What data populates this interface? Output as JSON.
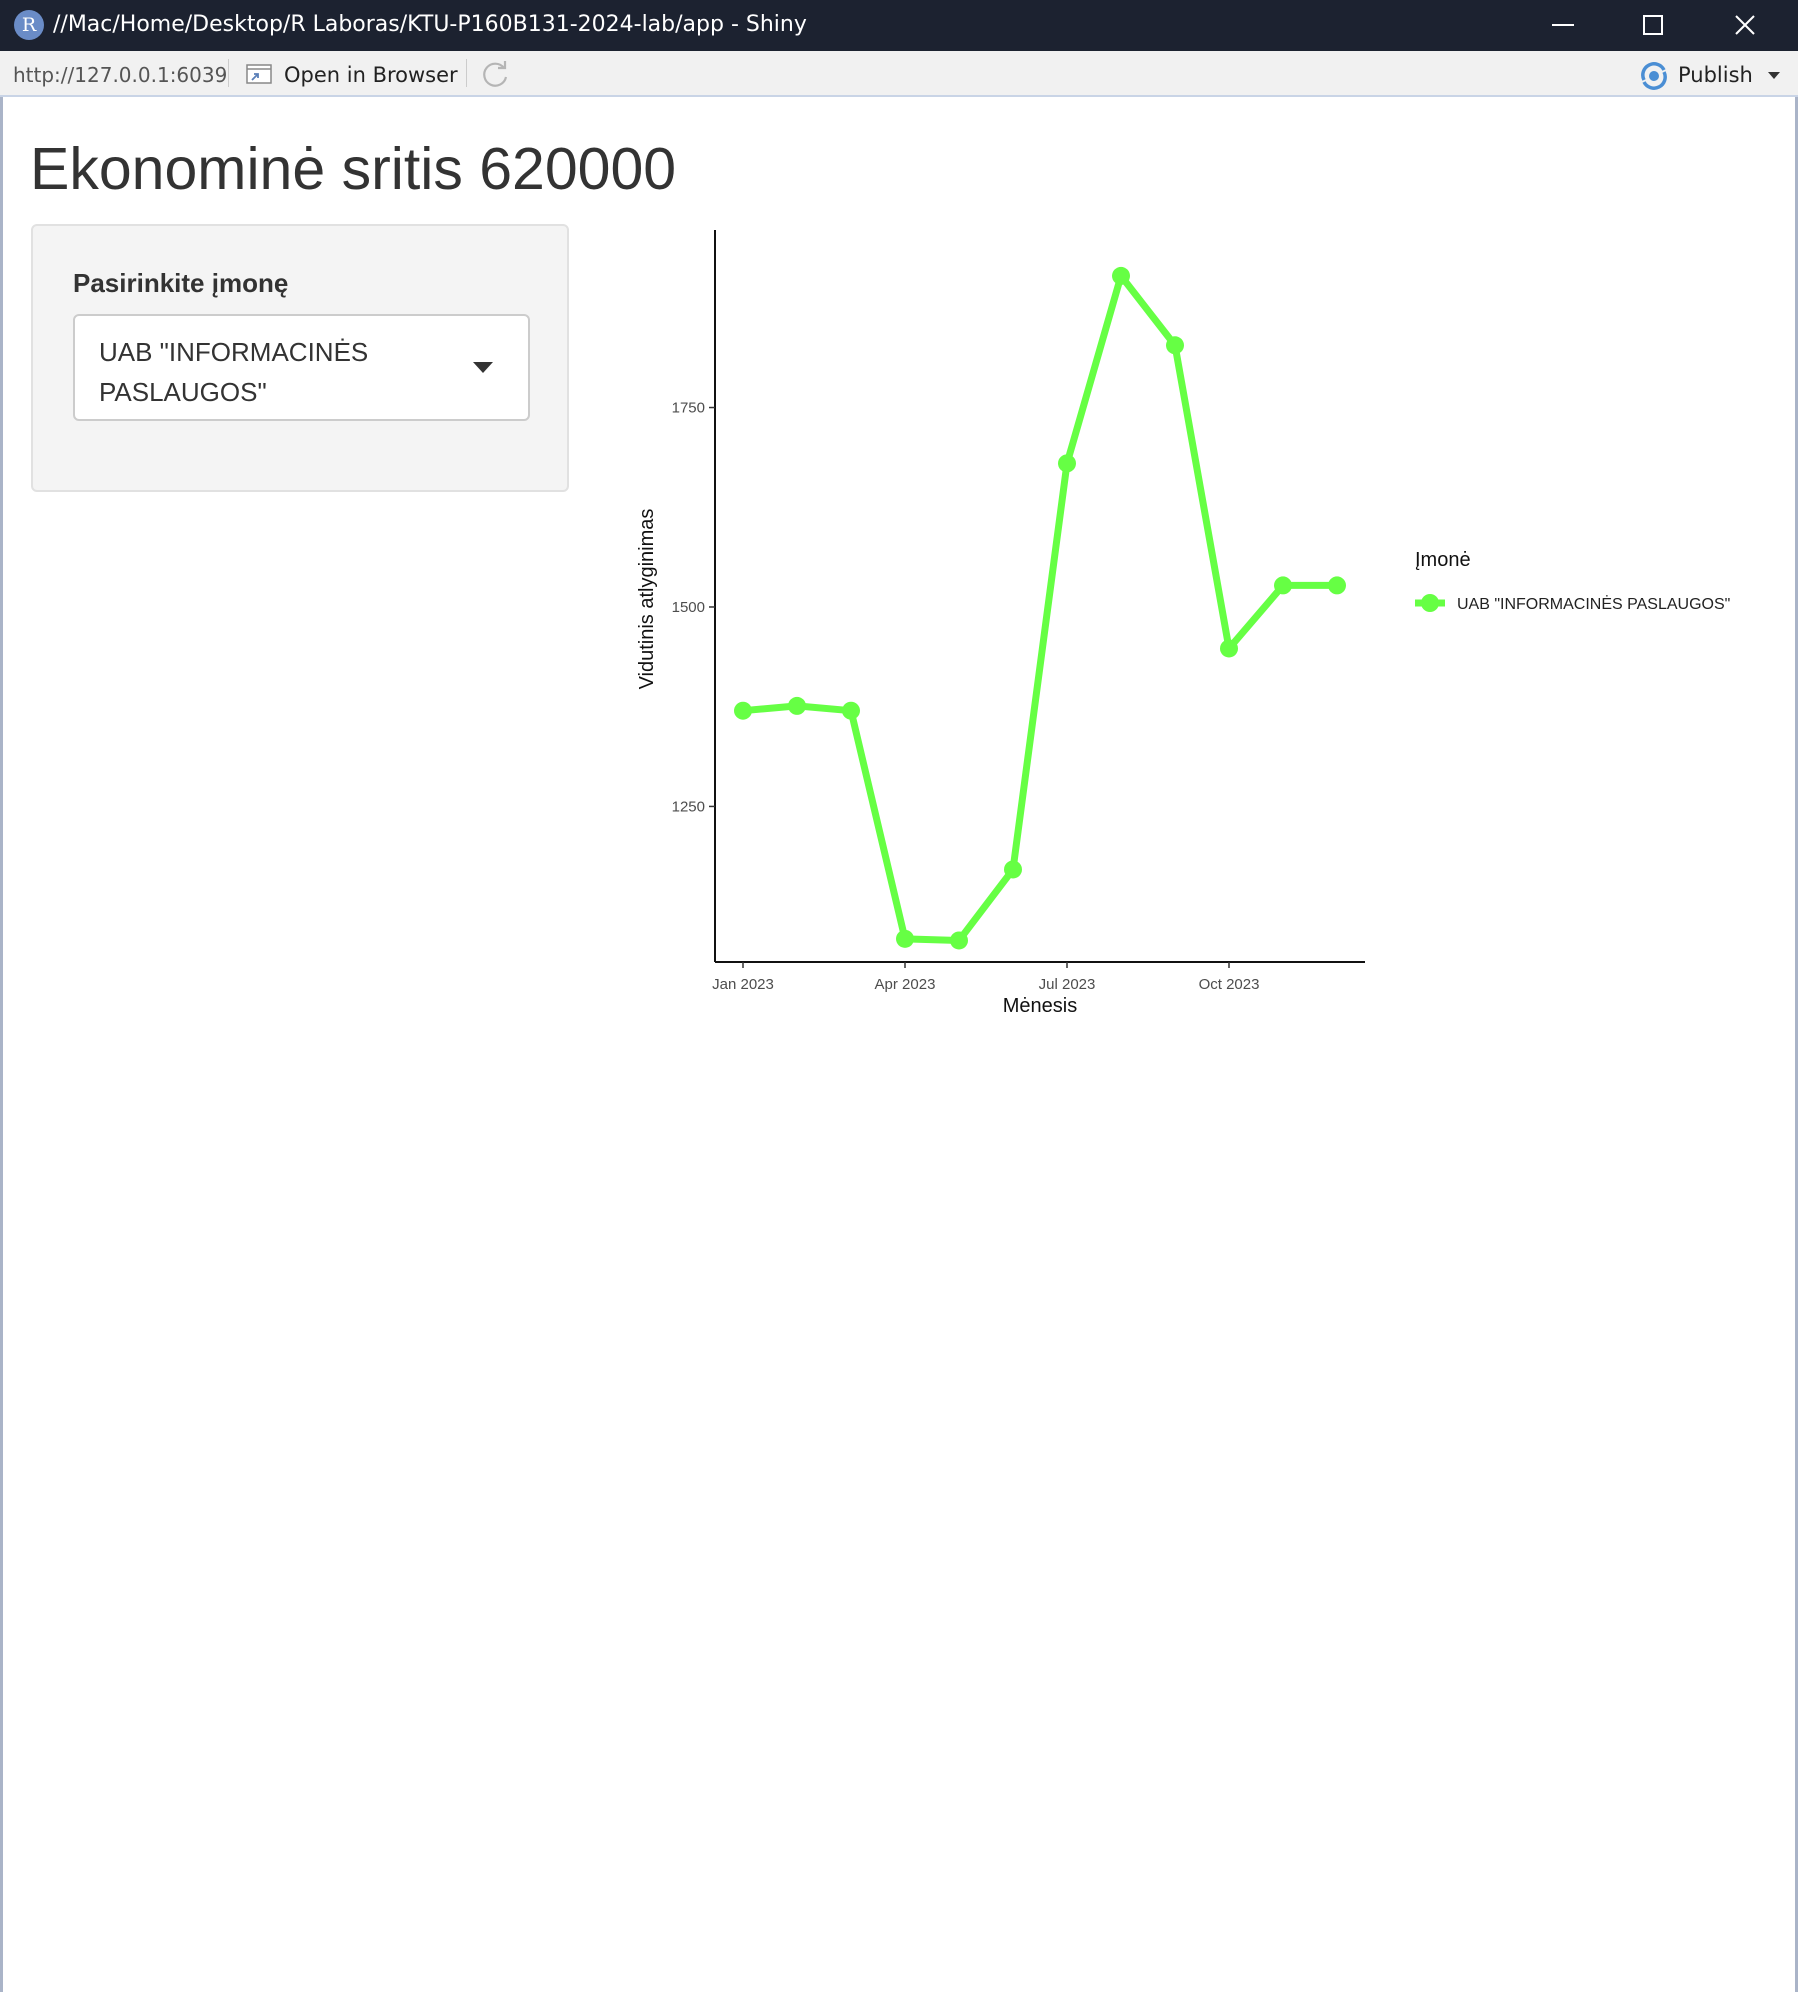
{
  "window": {
    "title": "//Mac/Home/Desktop/R Laboras/KTU-P160B131-2024-lab/app - Shiny",
    "app_icon_letter": "R"
  },
  "toolbar": {
    "url": "http://127.0.0.1:6039",
    "open_in_browser_label": "Open in Browser",
    "publish_label": "Publish"
  },
  "page": {
    "title": "Ekonominė sritis 620000"
  },
  "sidebar": {
    "select_label": "Pasirinkite įmonę",
    "select_value": "UAB \"INFORMACINĖS PASLAUGOS\""
  },
  "colors": {
    "series": "#66ff44",
    "titlebar": "#1c2230",
    "publish_icon": "#4a8ed4"
  },
  "chart_data": {
    "type": "line",
    "title": "",
    "xlabel": "Mėnesis",
    "ylabel": "Vidutinis atlyginimas",
    "x": [
      "2023-01",
      "2023-02",
      "2023-03",
      "2023-04",
      "2023-05",
      "2023-06",
      "2023-07",
      "2023-08",
      "2023-09",
      "2023-10",
      "2023-11",
      "2023-12"
    ],
    "x_ticks": [
      "Jan 2023",
      "Apr 2023",
      "Jul 2023",
      "Oct 2023"
    ],
    "y_ticks": [
      1250,
      1500,
      1750
    ],
    "ylim": [
      1055,
      1965
    ],
    "legend_title": "Įmonė",
    "legend_position": "right",
    "grid": false,
    "series": [
      {
        "name": "UAB \"INFORMACINĖS PASLAUGOS\"",
        "color": "#66ff44",
        "values": [
          1370,
          1376,
          1370,
          1084,
          1082,
          1171,
          1680,
          1915,
          1828,
          1448,
          1527,
          1527
        ]
      }
    ]
  }
}
